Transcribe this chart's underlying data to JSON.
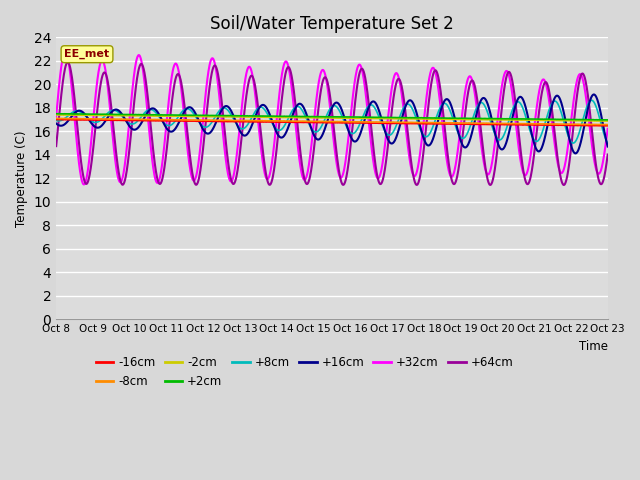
{
  "title": "Soil/Water Temperature Set 2",
  "xlabel": "Time",
  "ylabel": "Temperature (C)",
  "ylim": [
    0,
    24
  ],
  "yticks": [
    0,
    2,
    4,
    6,
    8,
    10,
    12,
    14,
    16,
    18,
    20,
    22,
    24
  ],
  "x_labels": [
    "Oct 8",
    "Oct 9",
    "Oct 10",
    "Oct 11",
    "Oct 12",
    "Oct 13",
    "Oct 14",
    "Oct 15",
    "Oct 16",
    "Oct 17",
    "Oct 18",
    "Oct 19",
    "Oct 20",
    "Oct 21",
    "Oct 22",
    "Oct 23"
  ],
  "annotation_text": "EE_met",
  "annotation_color": "#8B0000",
  "annotation_bg": "#FFFF99",
  "series_order": [
    "-16cm",
    "-8cm",
    "-2cm",
    "+2cm",
    "+8cm",
    "+16cm",
    "+32cm",
    "+64cm"
  ],
  "series": {
    "-16cm": {
      "color": "#FF0000",
      "lw": 1.2
    },
    "-8cm": {
      "color": "#FF8C00",
      "lw": 1.2
    },
    "-2cm": {
      "color": "#CCCC00",
      "lw": 1.2
    },
    "+2cm": {
      "color": "#00BB00",
      "lw": 1.2
    },
    "+8cm": {
      "color": "#00BBBB",
      "lw": 1.2
    },
    "+16cm": {
      "color": "#00008B",
      "lw": 1.5
    },
    "+32cm": {
      "color": "#FF00FF",
      "lw": 1.5
    },
    "+64cm": {
      "color": "#990099",
      "lw": 1.5
    }
  },
  "fig_bg": "#D8D8D8",
  "plot_bg": "#DCDCDC",
  "grid_color": "#FFFFFF",
  "n_points": 1500
}
